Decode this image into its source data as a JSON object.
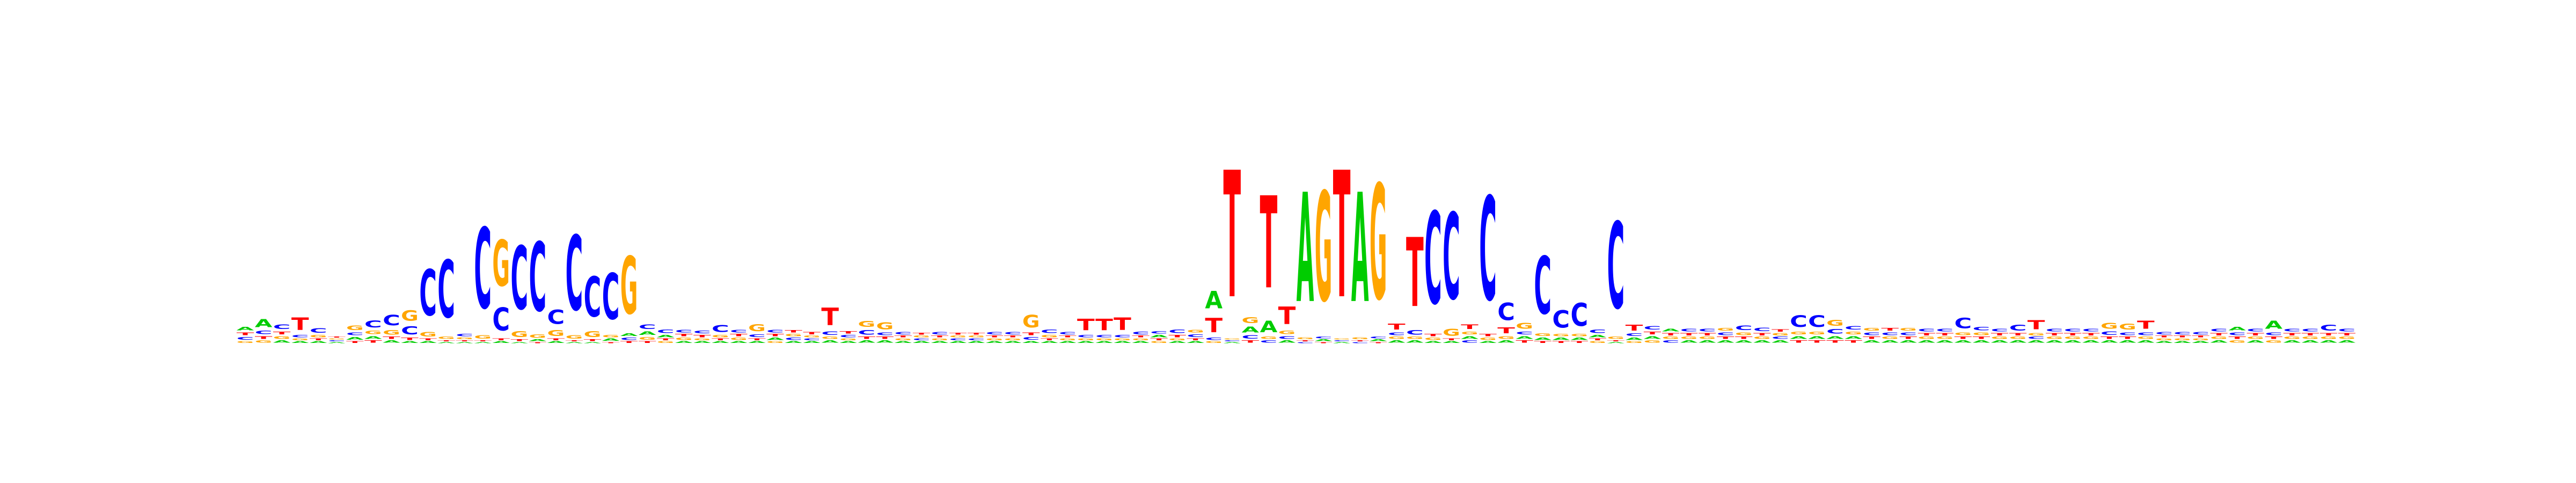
{
  "figure": {
    "type": "sequence-logo",
    "background": "#ffffff"
  },
  "colors": {
    "A": "#00cc00",
    "C": "#0000ff",
    "G": "#ffa500",
    "T": "#ff0000"
  },
  "chart_data": {
    "type": "sequence-logo",
    "alphabet": [
      "A",
      "C",
      "G",
      "T"
    ],
    "positions": [
      {
        "A": 0.06,
        "C": 0.05,
        "G": 0.03,
        "T": 0.05
      },
      {
        "A": 0.14,
        "C": 0.06,
        "G": 0.04,
        "T": 0.05
      },
      {
        "A": 0.04,
        "C": 0.08,
        "G": 0.05,
        "T": 0.05
      },
      {
        "A": 0.03,
        "C": 0.04,
        "G": 0.03,
        "T": 0.22
      },
      {
        "A": 0.03,
        "C": 0.08,
        "G": 0.04,
        "T": 0.03
      },
      {
        "A": 0.02,
        "C": 0.02,
        "G": 0.02,
        "T": 0.02
      },
      {
        "A": 0.05,
        "C": 0.05,
        "G": 0.08,
        "T": 0.03
      },
      {
        "A": 0.05,
        "C": 0.12,
        "G": 0.06,
        "T": 0.04
      },
      {
        "A": 0.04,
        "C": 0.18,
        "G": 0.08,
        "T": 0.04
      },
      {
        "A": 0.03,
        "C": 0.14,
        "G": 0.18,
        "T": 0.04
      },
      {
        "A": 0.03,
        "C": 0.8,
        "G": 0.08,
        "T": 0.03
      },
      {
        "A": 0.02,
        "C": 1.0,
        "G": 0.04,
        "T": 0.02
      },
      {
        "A": 0.02,
        "C": 0.04,
        "G": 0.03,
        "T": 0.02
      },
      {
        "A": 0.02,
        "C": 1.4,
        "G": 0.06,
        "T": 0.02
      },
      {
        "A": 0.03,
        "C": 0.4,
        "G": 0.8,
        "T": 0.03
      },
      {
        "A": 0.02,
        "C": 1.1,
        "G": 0.1,
        "T": 0.03
      },
      {
        "A": 0.03,
        "C": 1.2,
        "G": 0.06,
        "T": 0.02
      },
      {
        "A": 0.03,
        "C": 0.25,
        "G": 0.1,
        "T": 0.03
      },
      {
        "A": 0.02,
        "C": 1.3,
        "G": 0.06,
        "T": 0.02
      },
      {
        "A": 0.02,
        "C": 0.7,
        "G": 0.1,
        "T": 0.03
      },
      {
        "A": 0.04,
        "C": 0.8,
        "G": 0.04,
        "T": 0.02
      },
      {
        "A": 0.05,
        "C": 0.04,
        "G": 1.0,
        "T": 0.03
      },
      {
        "A": 0.06,
        "C": 0.08,
        "G": 0.05,
        "T": 0.03
      },
      {
        "A": 0.04,
        "C": 0.06,
        "G": 0.03,
        "T": 0.03
      },
      {
        "A": 0.03,
        "C": 0.05,
        "G": 0.04,
        "T": 0.04
      },
      {
        "A": 0.03,
        "C": 0.05,
        "G": 0.03,
        "T": 0.04
      },
      {
        "A": 0.03,
        "C": 0.12,
        "G": 0.04,
        "T": 0.03
      },
      {
        "A": 0.03,
        "C": 0.05,
        "G": 0.04,
        "T": 0.04
      },
      {
        "A": 0.03,
        "C": 0.05,
        "G": 0.12,
        "T": 0.03
      },
      {
        "A": 0.04,
        "C": 0.05,
        "G": 0.03,
        "T": 0.04
      },
      {
        "A": 0.03,
        "C": 0.04,
        "G": 0.04,
        "T": 0.04
      },
      {
        "A": 0.03,
        "C": 0.03,
        "G": 0.03,
        "T": 0.04
      },
      {
        "A": 0.04,
        "C": 0.06,
        "G": 0.04,
        "T": 0.3
      },
      {
        "A": 0.03,
        "C": 0.04,
        "G": 0.03,
        "T": 0.04
      },
      {
        "A": 0.04,
        "C": 0.08,
        "G": 0.1,
        "T": 0.04
      },
      {
        "A": 0.04,
        "C": 0.05,
        "G": 0.12,
        "T": 0.04
      },
      {
        "A": 0.03,
        "C": 0.04,
        "G": 0.03,
        "T": 0.03
      },
      {
        "A": 0.03,
        "C": 0.03,
        "G": 0.03,
        "T": 0.03
      },
      {
        "A": 0.03,
        "C": 0.04,
        "G": 0.03,
        "T": 0.03
      },
      {
        "A": 0.03,
        "C": 0.03,
        "G": 0.03,
        "T": 0.03
      },
      {
        "A": 0.03,
        "C": 0.03,
        "G": 0.03,
        "T": 0.03
      },
      {
        "A": 0.03,
        "C": 0.04,
        "G": 0.03,
        "T": 0.03
      },
      {
        "A": 0.03,
        "C": 0.04,
        "G": 0.03,
        "T": 0.03
      },
      {
        "A": 0.03,
        "C": 0.05,
        "G": 0.22,
        "T": 0.05
      },
      {
        "A": 0.03,
        "C": 0.06,
        "G": 0.04,
        "T": 0.03
      },
      {
        "A": 0.03,
        "C": 0.04,
        "G": 0.03,
        "T": 0.03
      },
      {
        "A": 0.03,
        "C": 0.04,
        "G": 0.03,
        "T": 0.2
      },
      {
        "A": 0.03,
        "C": 0.04,
        "G": 0.03,
        "T": 0.2
      },
      {
        "A": 0.03,
        "C": 0.04,
        "G": 0.03,
        "T": 0.22
      },
      {
        "A": 0.03,
        "C": 0.05,
        "G": 0.03,
        "T": 0.03
      },
      {
        "A": 0.04,
        "C": 0.04,
        "G": 0.03,
        "T": 0.03
      },
      {
        "A": 0.03,
        "C": 0.06,
        "G": 0.03,
        "T": 0.04
      },
      {
        "A": 0.03,
        "C": 0.05,
        "G": 0.05,
        "T": 0.03
      },
      {
        "A": 0.3,
        "C": 0.04,
        "G": 0.03,
        "T": 0.25
      },
      {
        "A": 0.02,
        "C": 0.02,
        "G": 0.02,
        "T": 2.2
      },
      {
        "A": 0.1,
        "C": 0.06,
        "G": 0.1,
        "T": 0.04
      },
      {
        "A": 0.2,
        "C": 0.04,
        "G": 0.04,
        "T": 1.6
      },
      {
        "A": 0.04,
        "C": 0.05,
        "G": 0.06,
        "T": 0.3
      },
      {
        "A": 1.9,
        "C": 0.02,
        "G": 0.03,
        "T": 0.02
      },
      {
        "A": 0.03,
        "C": 0.03,
        "G": 1.9,
        "T": 0.02
      },
      {
        "A": 0.02,
        "C": 0.02,
        "G": 0.02,
        "T": 2.2
      },
      {
        "A": 1.9,
        "C": 0.02,
        "G": 0.03,
        "T": 0.02
      },
      {
        "A": 0.03,
        "C": 0.03,
        "G": 2.0,
        "T": 0.02
      },
      {
        "A": 0.04,
        "C": 0.05,
        "G": 0.04,
        "T": 0.1
      },
      {
        "A": 0.04,
        "C": 0.08,
        "G": 0.04,
        "T": 1.2
      },
      {
        "A": 0.03,
        "C": 1.6,
        "G": 0.04,
        "T": 0.04
      },
      {
        "A": 0.03,
        "C": 1.5,
        "G": 0.12,
        "T": 0.03
      },
      {
        "A": 0.05,
        "C": 0.04,
        "G": 0.05,
        "T": 0.08
      },
      {
        "A": 0.03,
        "C": 1.8,
        "G": 0.04,
        "T": 0.04
      },
      {
        "A": 0.04,
        "C": 0.3,
        "G": 0.05,
        "T": 0.1
      },
      {
        "A": 0.05,
        "C": 0.05,
        "G": 0.1,
        "T": 0.04
      },
      {
        "A": 0.04,
        "C": 1.0,
        "G": 0.05,
        "T": 0.03
      },
      {
        "A": 0.04,
        "C": 0.3,
        "G": 0.04,
        "T": 0.03
      },
      {
        "A": 0.04,
        "C": 0.4,
        "G": 0.04,
        "T": 0.03
      },
      {
        "A": 0.04,
        "C": 0.06,
        "G": 0.03,
        "T": 0.03
      },
      {
        "A": 0.02,
        "C": 1.5,
        "G": 0.04,
        "T": 0.02
      },
      {
        "A": 0.04,
        "C": 0.05,
        "G": 0.03,
        "T": 0.1
      },
      {
        "A": 0.05,
        "C": 0.06,
        "G": 0.04,
        "T": 0.05
      },
      {
        "A": 0.05,
        "C": 0.04,
        "G": 0.04,
        "T": 0.04
      },
      {
        "A": 0.04,
        "C": 0.05,
        "G": 0.04,
        "T": 0.04
      },
      {
        "A": 0.04,
        "C": 0.05,
        "G": 0.04,
        "T": 0.04
      },
      {
        "A": 0.04,
        "C": 0.05,
        "G": 0.05,
        "T": 0.04
      },
      {
        "A": 0.04,
        "C": 0.08,
        "G": 0.05,
        "T": 0.04
      },
      {
        "A": 0.04,
        "C": 0.06,
        "G": 0.04,
        "T": 0.04
      },
      {
        "A": 0.04,
        "C": 0.04,
        "G": 0.04,
        "T": 0.04
      },
      {
        "A": 0.05,
        "C": 0.2,
        "G": 0.05,
        "T": 0.04
      },
      {
        "A": 0.05,
        "C": 0.2,
        "G": 0.05,
        "T": 0.04
      },
      {
        "A": 0.05,
        "C": 0.08,
        "G": 0.1,
        "T": 0.04
      },
      {
        "A": 0.05,
        "C": 0.06,
        "G": 0.05,
        "T": 0.04
      },
      {
        "A": 0.04,
        "C": 0.05,
        "G": 0.05,
        "T": 0.04
      },
      {
        "A": 0.04,
        "C": 0.05,
        "G": 0.04,
        "T": 0.05
      },
      {
        "A": 0.04,
        "C": 0.05,
        "G": 0.05,
        "T": 0.04
      },
      {
        "A": 0.04,
        "C": 0.05,
        "G": 0.04,
        "T": 0.04
      },
      {
        "A": 0.04,
        "C": 0.05,
        "G": 0.04,
        "T": 0.04
      },
      {
        "A": 0.04,
        "C": 0.18,
        "G": 0.05,
        "T": 0.04
      },
      {
        "A": 0.04,
        "C": 0.06,
        "G": 0.05,
        "T": 0.04
      },
      {
        "A": 0.04,
        "C": 0.05,
        "G": 0.04,
        "T": 0.04
      },
      {
        "A": 0.04,
        "C": 0.1,
        "G": 0.04,
        "T": 0.04
      },
      {
        "A": 0.04,
        "C": 0.04,
        "G": 0.04,
        "T": 0.16
      },
      {
        "A": 0.04,
        "C": 0.05,
        "G": 0.04,
        "T": 0.04
      },
      {
        "A": 0.04,
        "C": 0.05,
        "G": 0.04,
        "T": 0.04
      },
      {
        "A": 0.04,
        "C": 0.05,
        "G": 0.04,
        "T": 0.04
      },
      {
        "A": 0.04,
        "C": 0.06,
        "G": 0.1,
        "T": 0.04
      },
      {
        "A": 0.04,
        "C": 0.05,
        "G": 0.1,
        "T": 0.04
      },
      {
        "A": 0.04,
        "C": 0.05,
        "G": 0.04,
        "T": 0.14
      },
      {
        "A": 0.03,
        "C": 0.04,
        "G": 0.03,
        "T": 0.03
      },
      {
        "A": 0.03,
        "C": 0.04,
        "G": 0.03,
        "T": 0.03
      },
      {
        "A": 0.03,
        "C": 0.04,
        "G": 0.03,
        "T": 0.03
      },
      {
        "A": 0.04,
        "C": 0.05,
        "G": 0.04,
        "T": 0.04
      },
      {
        "A": 0.06,
        "C": 0.05,
        "G": 0.04,
        "T": 0.04
      },
      {
        "A": 0.04,
        "C": 0.05,
        "G": 0.04,
        "T": 0.04
      },
      {
        "A": 0.14,
        "C": 0.05,
        "G": 0.04,
        "T": 0.04
      },
      {
        "A": 0.04,
        "C": 0.05,
        "G": 0.04,
        "T": 0.04
      },
      {
        "A": 0.04,
        "C": 0.05,
        "G": 0.04,
        "T": 0.04
      },
      {
        "A": 0.04,
        "C": 0.1,
        "G": 0.04,
        "T": 0.04
      },
      {
        "A": 0.04,
        "C": 0.05,
        "G": 0.04,
        "T": 0.04
      }
    ]
  }
}
